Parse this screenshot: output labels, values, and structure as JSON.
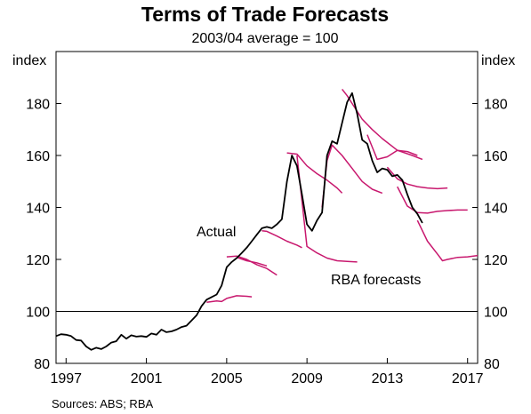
{
  "chart_data": {
    "type": "line",
    "title": "Terms of Trade Forecasts",
    "subtitle": "2003/04 average = 100",
    "y_unit_left": "index",
    "y_unit_right": "index",
    "ylim": [
      80,
      200
    ],
    "yticks": [
      80,
      100,
      120,
      140,
      160,
      180
    ],
    "xlim": [
      1996.5,
      2017.5
    ],
    "xticks": [
      1997,
      2001,
      2005,
      2009,
      2013,
      2017
    ],
    "reference_line": 100,
    "source": "Sources:   ABS; RBA",
    "annotations": [
      {
        "text": "Actual",
        "series": "actual"
      },
      {
        "text": "RBA forecasts",
        "series": "forecasts"
      }
    ],
    "colors": {
      "actual": "#000000",
      "forecasts": "#c8186e"
    },
    "series": [
      {
        "id": "actual",
        "points": [
          [
            1996.5,
            90.5
          ],
          [
            1996.75,
            91.2
          ],
          [
            1997.0,
            91.0
          ],
          [
            1997.25,
            90.5
          ],
          [
            1997.5,
            89.0
          ],
          [
            1997.75,
            88.8
          ],
          [
            1998.0,
            86.5
          ],
          [
            1998.25,
            85.2
          ],
          [
            1998.5,
            86.0
          ],
          [
            1998.75,
            85.5
          ],
          [
            1999.0,
            86.5
          ],
          [
            1999.25,
            88.0
          ],
          [
            1999.5,
            88.5
          ],
          [
            1999.75,
            91.0
          ],
          [
            2000.0,
            89.5
          ],
          [
            2000.25,
            90.8
          ],
          [
            2000.5,
            90.3
          ],
          [
            2000.75,
            90.5
          ],
          [
            2001.0,
            90.2
          ],
          [
            2001.25,
            91.5
          ],
          [
            2001.5,
            91.0
          ],
          [
            2001.75,
            93.0
          ],
          [
            2002.0,
            92.0
          ],
          [
            2002.25,
            92.3
          ],
          [
            2002.5,
            93.0
          ],
          [
            2002.75,
            94.0
          ],
          [
            2003.0,
            94.5
          ],
          [
            2003.25,
            96.5
          ],
          [
            2003.5,
            98.5
          ],
          [
            2003.75,
            102.0
          ],
          [
            2004.0,
            104.5
          ],
          [
            2004.25,
            105.5
          ],
          [
            2004.5,
            106.5
          ],
          [
            2004.75,
            110.0
          ],
          [
            2005.0,
            117.0
          ],
          [
            2005.25,
            119.0
          ],
          [
            2005.5,
            120.5
          ],
          [
            2005.75,
            122.5
          ],
          [
            2006.0,
            124.5
          ],
          [
            2006.25,
            127.0
          ],
          [
            2006.5,
            129.5
          ],
          [
            2006.75,
            132.0
          ],
          [
            2007.0,
            132.5
          ],
          [
            2007.25,
            132.0
          ],
          [
            2007.5,
            133.5
          ],
          [
            2007.75,
            135.5
          ],
          [
            2008.0,
            150.0
          ],
          [
            2008.25,
            160.0
          ],
          [
            2008.5,
            156.0
          ],
          [
            2008.75,
            145.0
          ],
          [
            2009.0,
            133.5
          ],
          [
            2009.25,
            131.0
          ],
          [
            2009.5,
            135.0
          ],
          [
            2009.75,
            138.0
          ],
          [
            2010.0,
            160.0
          ],
          [
            2010.25,
            165.5
          ],
          [
            2010.5,
            164.5
          ],
          [
            2010.75,
            172.5
          ],
          [
            2011.0,
            180.5
          ],
          [
            2011.25,
            184.0
          ],
          [
            2011.5,
            176.0
          ],
          [
            2011.75,
            166.0
          ],
          [
            2012.0,
            164.5
          ],
          [
            2012.25,
            158.0
          ],
          [
            2012.5,
            153.5
          ],
          [
            2012.75,
            155.0
          ],
          [
            2013.0,
            154.5
          ],
          [
            2013.25,
            152.0
          ],
          [
            2013.5,
            152.5
          ],
          [
            2013.75,
            150.5
          ],
          [
            2014.0,
            145.0
          ],
          [
            2014.25,
            140.0
          ],
          [
            2014.5,
            137.5
          ],
          [
            2014.75,
            134.0
          ]
        ]
      },
      {
        "id": "forecasts",
        "segments": [
          [
            [
              2004.0,
              103.5
            ],
            [
              2004.5,
              104.0
            ],
            [
              2004.75,
              103.8
            ],
            [
              2005.0,
              105.0
            ],
            [
              2005.5,
              106.0
            ],
            [
              2006.0,
              105.8
            ],
            [
              2006.25,
              105.6
            ]
          ],
          [
            [
              2005.0,
              121.0
            ],
            [
              2005.5,
              121.3
            ],
            [
              2006.0,
              120.0
            ],
            [
              2006.5,
              118.0
            ],
            [
              2007.0,
              116.5
            ],
            [
              2007.5,
              114.0
            ]
          ],
          [
            [
              2005.5,
              120.8
            ],
            [
              2006.0,
              119.5
            ],
            [
              2006.5,
              118.7
            ],
            [
              2007.0,
              117.5
            ]
          ],
          [
            [
              2006.75,
              131.0
            ],
            [
              2007.0,
              130.8
            ],
            [
              2007.5,
              129.0
            ],
            [
              2008.0,
              127.0
            ],
            [
              2008.5,
              125.5
            ],
            [
              2008.75,
              124.5
            ]
          ],
          [
            [
              2008.0,
              161.0
            ],
            [
              2008.5,
              160.5
            ],
            [
              2009.0,
              156.0
            ],
            [
              2009.5,
              153.0
            ],
            [
              2010.0,
              150.5
            ],
            [
              2010.5,
              147.5
            ],
            [
              2010.75,
              145.5
            ]
          ],
          [
            [
              2008.5,
              160.0
            ],
            [
              2009.0,
              125.0
            ],
            [
              2009.5,
              122.5
            ],
            [
              2010.0,
              120.5
            ],
            [
              2010.5,
              119.5
            ],
            [
              2011.0,
              119.2
            ],
            [
              2011.5,
              119.0
            ]
          ],
          [
            [
              2009.75,
              140.0
            ],
            [
              2010.0,
              158.0
            ],
            [
              2010.25,
              164.0
            ],
            [
              2010.75,
              160.0
            ],
            [
              2011.25,
              155.0
            ],
            [
              2011.75,
              150.0
            ],
            [
              2012.25,
              147.0
            ],
            [
              2012.75,
              145.5
            ]
          ],
          [
            [
              2010.75,
              185.5
            ],
            [
              2011.0,
              183.0
            ],
            [
              2011.25,
              180.0
            ],
            [
              2011.75,
              174.0
            ],
            [
              2012.25,
              170.0
            ],
            [
              2012.75,
              166.5
            ],
            [
              2013.5,
              162.0
            ],
            [
              2014.25,
              160.0
            ],
            [
              2014.75,
              158.5
            ]
          ],
          [
            [
              2012.0,
              168.0
            ],
            [
              2012.5,
              158.5
            ],
            [
              2013.0,
              159.5
            ],
            [
              2013.5,
              162.0
            ],
            [
              2014.0,
              161.5
            ],
            [
              2014.5,
              160.0
            ]
          ],
          [
            [
              2013.0,
              155.5
            ],
            [
              2013.5,
              151.0
            ],
            [
              2014.0,
              149.0
            ],
            [
              2014.5,
              148.0
            ],
            [
              2015.0,
              147.5
            ],
            [
              2015.5,
              147.2
            ],
            [
              2016.0,
              147.5
            ]
          ],
          [
            [
              2013.5,
              148.0
            ],
            [
              2014.0,
              140.5
            ],
            [
              2014.5,
              138.0
            ],
            [
              2015.0,
              137.8
            ],
            [
              2015.5,
              138.5
            ],
            [
              2016.0,
              138.8
            ],
            [
              2016.5,
              139.0
            ],
            [
              2017.0,
              139.0
            ]
          ],
          [
            [
              2014.5,
              135.0
            ],
            [
              2015.0,
              127.0
            ],
            [
              2015.5,
              122.0
            ],
            [
              2015.75,
              119.5
            ],
            [
              2016.0,
              120.0
            ],
            [
              2016.5,
              120.8
            ],
            [
              2017.0,
              121.0
            ],
            [
              2017.5,
              121.5
            ]
          ]
        ]
      }
    ]
  }
}
